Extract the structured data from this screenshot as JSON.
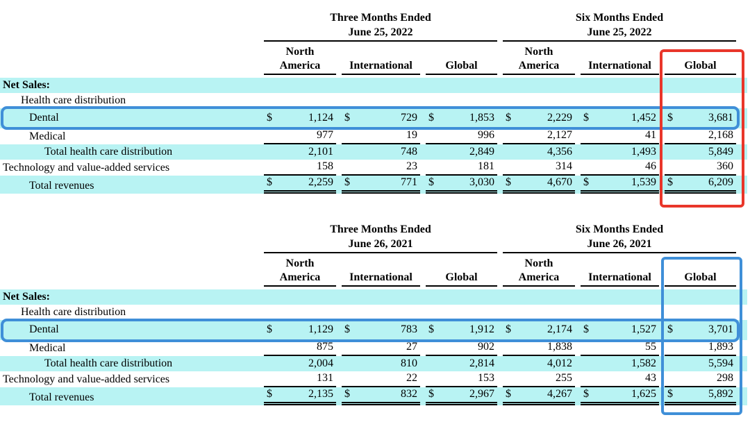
{
  "colors": {
    "row_highlight": "#b8f3f3",
    "annotation_red": "#e9362a",
    "annotation_blue": "#3f8fd8",
    "rule": "#000000",
    "text": "#000000",
    "background": "#ffffff"
  },
  "tables": [
    {
      "id": "2022",
      "groups": [
        {
          "period": "Three Months Ended",
          "date": "June 25, 2022"
        },
        {
          "period": "Six Months Ended",
          "date": "June 25, 2022"
        }
      ],
      "columns": [
        "North\nAmerica",
        "International",
        "Global",
        "North\nAmerica",
        "International",
        "Global"
      ],
      "rows": [
        {
          "label": "Net Sales:",
          "section": true,
          "highlight": true,
          "indent": 0,
          "dollar": false,
          "values": [
            "",
            "",
            "",
            "",
            "",
            ""
          ],
          "rule_below": "none"
        },
        {
          "label": "Health care distribution",
          "section": false,
          "highlight": false,
          "indent": 1,
          "dollar": false,
          "values": [
            "",
            "",
            "",
            "",
            "",
            ""
          ],
          "rule_below": "none"
        },
        {
          "label": "Dental",
          "section": false,
          "highlight": true,
          "indent": 2,
          "dollar": true,
          "values": [
            "1,124",
            "729",
            "1,853",
            "2,229",
            "1,452",
            "3,681"
          ],
          "rule_below": "none",
          "boxed": true
        },
        {
          "label": "Medical",
          "section": false,
          "highlight": false,
          "indent": 2,
          "dollar": false,
          "values": [
            "977",
            "19",
            "996",
            "2,127",
            "41",
            "2,168"
          ],
          "rule_below": "single"
        },
        {
          "label": "Total health care distribution",
          "section": false,
          "highlight": true,
          "indent": 3,
          "dollar": false,
          "values": [
            "2,101",
            "748",
            "2,849",
            "4,356",
            "1,493",
            "5,849"
          ],
          "rule_below": "none"
        },
        {
          "label": "Technology and value-added services",
          "section": false,
          "highlight": false,
          "indent": 0,
          "dollar": false,
          "values": [
            "158",
            "23",
            "181",
            "314",
            "46",
            "360"
          ],
          "rule_below": "single"
        },
        {
          "label": "Total revenues",
          "section": false,
          "highlight": true,
          "indent": 2,
          "dollar": true,
          "values": [
            "2,259",
            "771",
            "3,030",
            "4,670",
            "1,539",
            "6,209"
          ],
          "rule_below": "double",
          "grand": true
        }
      ]
    },
    {
      "id": "2021",
      "groups": [
        {
          "period": "Three Months Ended",
          "date": "June 26, 2021"
        },
        {
          "period": "Six Months Ended",
          "date": "June 26, 2021"
        }
      ],
      "columns": [
        "North\nAmerica",
        "International",
        "Global",
        "North\nAmerica",
        "International",
        "Global"
      ],
      "rows": [
        {
          "label": "Net Sales:",
          "section": true,
          "highlight": true,
          "indent": 0,
          "dollar": false,
          "values": [
            "",
            "",
            "",
            "",
            "",
            ""
          ],
          "rule_below": "none"
        },
        {
          "label": "Health care distribution",
          "section": false,
          "highlight": false,
          "indent": 1,
          "dollar": false,
          "values": [
            "",
            "",
            "",
            "",
            "",
            ""
          ],
          "rule_below": "none"
        },
        {
          "label": "Dental",
          "section": false,
          "highlight": true,
          "indent": 2,
          "dollar": true,
          "values": [
            "1,129",
            "783",
            "1,912",
            "2,174",
            "1,527",
            "3,701"
          ],
          "rule_below": "none",
          "boxed": true
        },
        {
          "label": "Medical",
          "section": false,
          "highlight": false,
          "indent": 2,
          "dollar": false,
          "values": [
            "875",
            "27",
            "902",
            "1,838",
            "55",
            "1,893"
          ],
          "rule_below": "single"
        },
        {
          "label": "Total health care distribution",
          "section": false,
          "highlight": true,
          "indent": 3,
          "dollar": false,
          "values": [
            "2,004",
            "810",
            "2,814",
            "4,012",
            "1,582",
            "5,594"
          ],
          "rule_below": "none"
        },
        {
          "label": "Technology and value-added services",
          "section": false,
          "highlight": false,
          "indent": 0,
          "dollar": false,
          "values": [
            "131",
            "22",
            "153",
            "255",
            "43",
            "298"
          ],
          "rule_below": "single"
        },
        {
          "label": "Total revenues",
          "section": false,
          "highlight": true,
          "indent": 2,
          "dollar": true,
          "values": [
            "2,135",
            "832",
            "2,967",
            "4,267",
            "1,625",
            "5,892"
          ],
          "rule_below": "double",
          "grand": true
        }
      ]
    }
  ],
  "annotations": [
    {
      "id": "ann-dental-2022",
      "shape": "rounded-box",
      "color": "blue",
      "target": "2022 Dental row"
    },
    {
      "id": "ann-global-2022",
      "shape": "box",
      "color": "red",
      "target": "2022 Six Months Ended Global column"
    },
    {
      "id": "ann-dental-2021",
      "shape": "rounded-box",
      "color": "blue",
      "target": "2021 Dental row"
    },
    {
      "id": "ann-global-2021",
      "shape": "box",
      "color": "blue",
      "target": "2021 Six Months Ended Global column"
    }
  ]
}
